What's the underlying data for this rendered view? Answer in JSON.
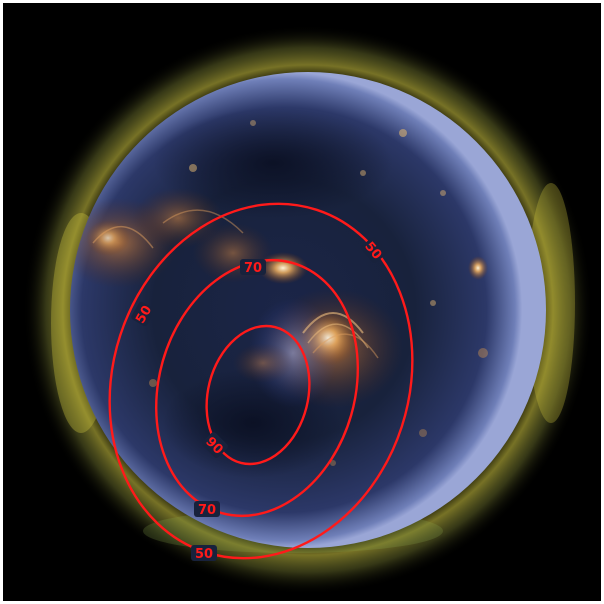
{
  "image": {
    "subject": "solar-disk-euv-composite",
    "background_color": "#000000",
    "contour_color": "#ff1a1a",
    "corona_colors": [
      "#d9d23a",
      "#5b6fd6",
      "#b8742a"
    ]
  },
  "contours": [
    {
      "level": 50,
      "labels": [
        "50",
        "50",
        "50"
      ]
    },
    {
      "level": 70,
      "labels": [
        "70",
        "70"
      ]
    },
    {
      "level": 90,
      "labels": [
        "90"
      ]
    }
  ]
}
